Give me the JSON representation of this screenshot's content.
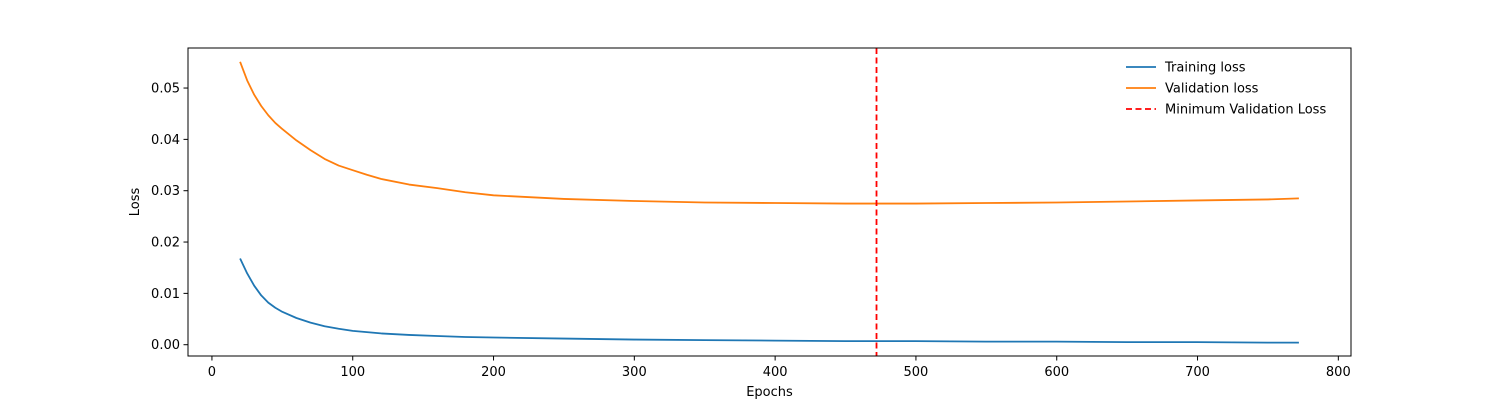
{
  "chart_data": {
    "type": "line",
    "xlabel": "Epochs",
    "ylabel": "Loss",
    "xlim": [
      -17,
      809
    ],
    "ylim": [
      -0.0022,
      0.0578
    ],
    "xticks": [
      0,
      100,
      200,
      300,
      400,
      500,
      600,
      700,
      800
    ],
    "xtick_labels": [
      "0",
      "100",
      "200",
      "300",
      "400",
      "500",
      "600",
      "700",
      "800"
    ],
    "yticks": [
      0.0,
      0.01,
      0.02,
      0.03,
      0.04,
      0.05
    ],
    "ytick_labels": [
      "0.00",
      "0.01",
      "0.02",
      "0.03",
      "0.04",
      "0.05"
    ],
    "grid": false,
    "legend_position": "top-right",
    "series": [
      {
        "name": "Training loss",
        "color": "#1f77b4",
        "style": "solid",
        "x": [
          20,
          25,
          30,
          35,
          40,
          45,
          50,
          60,
          70,
          80,
          90,
          100,
          120,
          140,
          160,
          180,
          200,
          250,
          300,
          350,
          400,
          450,
          500,
          550,
          600,
          650,
          700,
          750,
          772
        ],
        "y": [
          0.0168,
          0.0139,
          0.0115,
          0.0096,
          0.0082,
          0.0072,
          0.0064,
          0.0052,
          0.0043,
          0.0036,
          0.0031,
          0.0027,
          0.0022,
          0.0019,
          0.0017,
          0.0015,
          0.0014,
          0.0012,
          0.001,
          0.0009,
          0.0008,
          0.0007,
          0.0007,
          0.0006,
          0.0006,
          0.0005,
          0.0005,
          0.0004,
          0.0004
        ]
      },
      {
        "name": "Validation loss",
        "color": "#ff7f0e",
        "style": "solid",
        "x": [
          20,
          25,
          30,
          35,
          40,
          45,
          50,
          60,
          70,
          80,
          90,
          100,
          110,
          120,
          140,
          160,
          180,
          200,
          250,
          300,
          350,
          400,
          450,
          472,
          500,
          550,
          600,
          650,
          700,
          750,
          772
        ],
        "y": [
          0.0551,
          0.0515,
          0.0487,
          0.0465,
          0.0447,
          0.0432,
          0.042,
          0.0398,
          0.0379,
          0.0362,
          0.0349,
          0.034,
          0.0331,
          0.0323,
          0.0312,
          0.0305,
          0.0297,
          0.0291,
          0.0284,
          0.028,
          0.0277,
          0.0276,
          0.0275,
          0.0275,
          0.0275,
          0.0276,
          0.0277,
          0.0279,
          0.0281,
          0.0283,
          0.0285
        ]
      }
    ],
    "vlines": [
      {
        "name": "Minimum Validation Loss",
        "x": 472,
        "color": "#ff0000",
        "style": "dashed"
      }
    ]
  }
}
